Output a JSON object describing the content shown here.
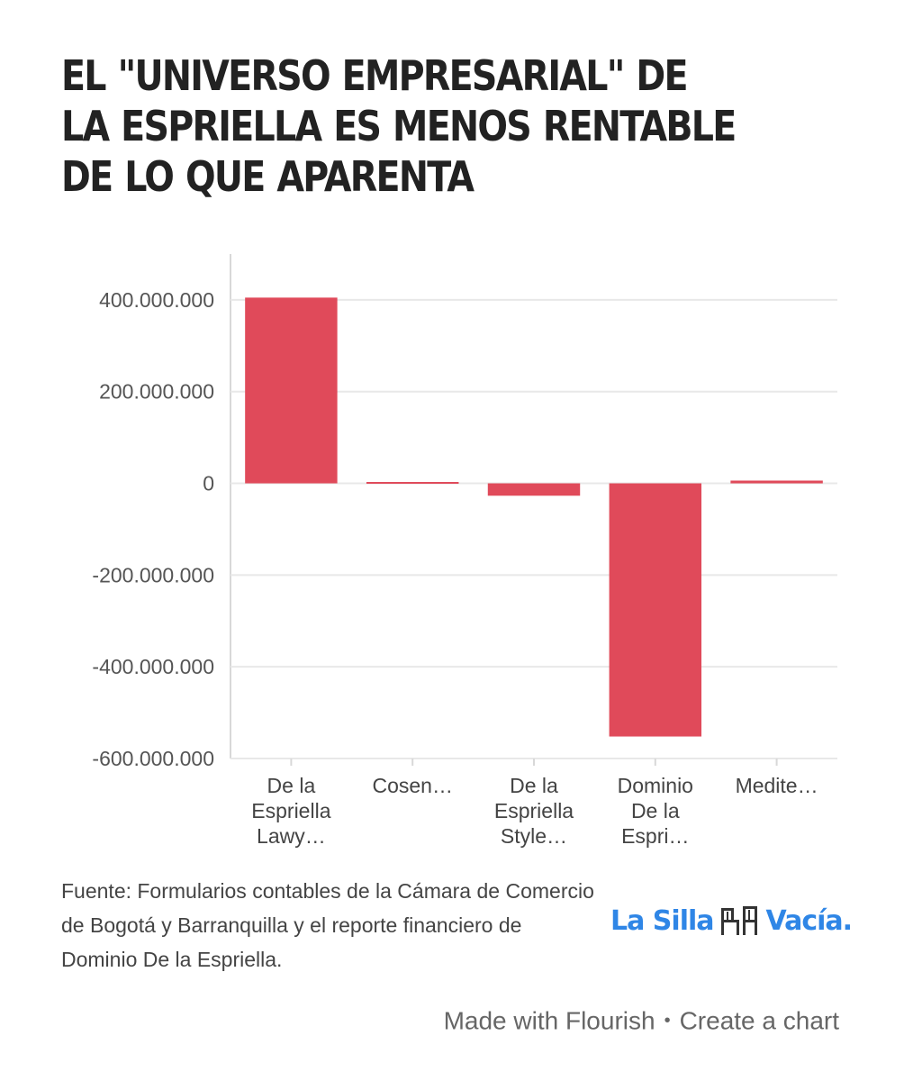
{
  "title": "EL \"UNIVERSO EMPRESARIAL\" DE LA ESPRIELLA ES MENOS RENTABLE DE LO QUE APARENTA",
  "source": "Fuente: Formularios contables de la Cámara de Comercio de Bogotá y Barranquilla y el reporte financiero de Dominio De la Espriella.",
  "logo": {
    "text_left": "La Silla",
    "text_right": "Vacía."
  },
  "footer": {
    "made_with": "Made with Flourish",
    "separator": "•",
    "create": "Create a chart"
  },
  "colors": {
    "bar": "#e04a5a",
    "grid": "#e8e8e8",
    "logo": "#2f86e6"
  },
  "chart_data": {
    "type": "bar",
    "categories": [
      [
        "De la",
        "Espriella",
        "Lawy…"
      ],
      [
        "Cosen…"
      ],
      [
        "De la",
        "Espriella",
        "Style…"
      ],
      [
        "Dominio",
        "De la",
        "Espri…"
      ],
      [
        "Medite…"
      ]
    ],
    "values": [
      405000000,
      3000000,
      -27000000,
      -552000000,
      6000000
    ],
    "ylim": [
      -600000000,
      500000000
    ],
    "yticks": [
      400000000,
      200000000,
      0,
      -200000000,
      -400000000,
      -600000000
    ],
    "ytick_labels": [
      "400.000.000",
      "200.000.000",
      "0",
      "-200.000.000",
      "-400.000.000",
      "-600.000.000"
    ],
    "grid": true,
    "xlabel": "",
    "ylabel": ""
  }
}
